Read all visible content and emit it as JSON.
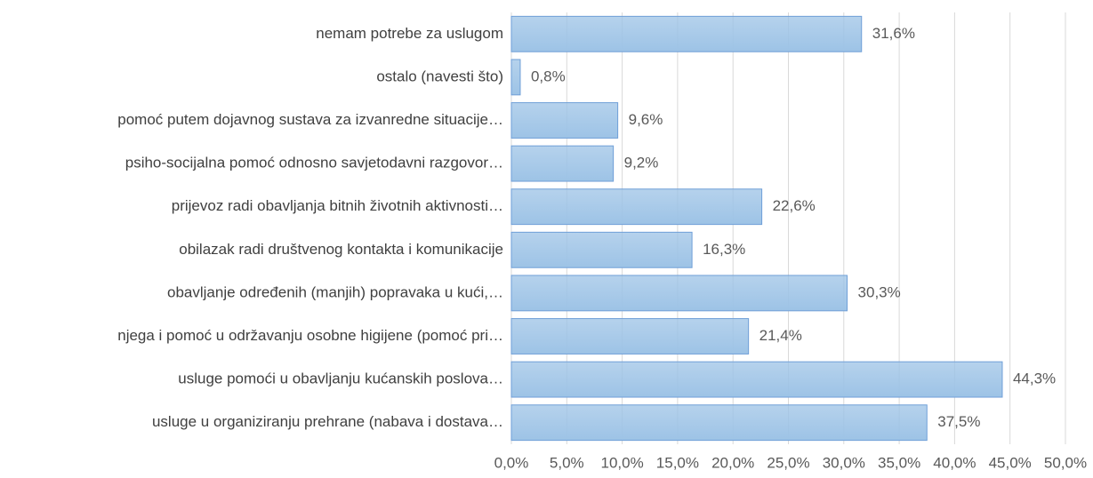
{
  "chart_data": {
    "type": "bar",
    "orientation": "horizontal",
    "categories": [
      "nemam potrebe za uslugom",
      "ostalo (navesti što)",
      "pomoć putem dojavnog sustava za izvanredne situacije…",
      "psiho-socijalna pomoć odnosno savjetodavni razgovor…",
      "prijevoz radi obavljanja bitnih životnih aktivnosti…",
      "obilazak radi društvenog kontakta i komunikacije",
      "obavljanje određenih (manjih) popravaka u kući,…",
      "njega i pomoć u održavanju osobne higijene (pomoć pri…",
      "usluge pomoći u obavljanju kućanskih poslova…",
      "usluge u organiziranju prehrane (nabava i dostava…"
    ],
    "values": [
      31.6,
      0.8,
      9.6,
      9.2,
      22.6,
      16.3,
      30.3,
      21.4,
      44.3,
      37.5
    ],
    "value_labels": [
      "31,6%",
      "0,8%",
      "9,6%",
      "9,2%",
      "22,6%",
      "16,3%",
      "30,3%",
      "21,4%",
      "44,3%",
      "37,5%"
    ],
    "color": "#9dc3e6",
    "xlim": [
      0,
      50
    ],
    "xticks": [
      {
        "value": 0,
        "label": "0,0%"
      },
      {
        "value": 5,
        "label": "5,0%"
      },
      {
        "value": 10,
        "label": "10,0%"
      },
      {
        "value": 15,
        "label": "15,0%"
      },
      {
        "value": 20,
        "label": "20,0%"
      },
      {
        "value": 25,
        "label": "25,0%"
      },
      {
        "value": 30,
        "label": "30,0%"
      },
      {
        "value": 35,
        "label": "35,0%"
      },
      {
        "value": 40,
        "label": "40,0%"
      },
      {
        "value": 45,
        "label": "45,0%"
      },
      {
        "value": 50,
        "label": "50,0%"
      }
    ],
    "grid": true
  }
}
